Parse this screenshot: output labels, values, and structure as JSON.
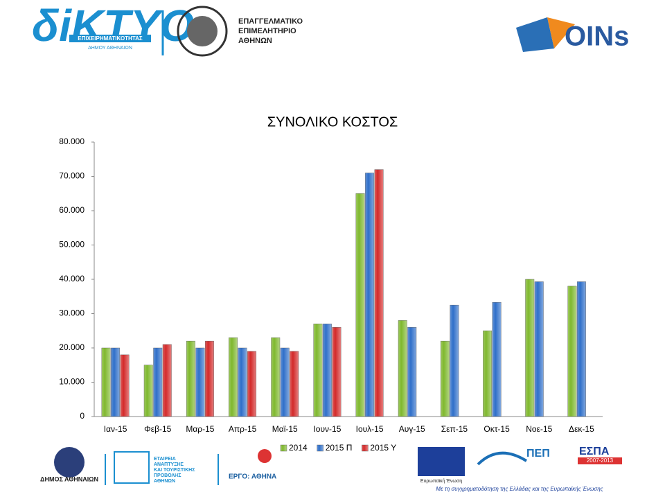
{
  "header": {
    "diktyo": "δiKTYO",
    "diktyo_sub": "ΕΠΙΧΕΙΡΗΜΑΤΙΚΟΤΗΤΑΣ",
    "diktyo_sub2": "ΔΗΜΟΥ ΑΘΗΝΑΙΩΝ",
    "chamber": [
      "ΕΠΑΓΓΕΛΜΑΤΙΚΟ",
      "ΕΠΙΜΕΛΗΤΗΡΙΟ",
      "ΑΘΗΝΩΝ"
    ],
    "coins": "OINs"
  },
  "footer": {
    "dimos": "ΔΗΜΟΣ ΑΘΗΝΑΙΩΝ",
    "etaireia": [
      "ΕΤΑΙΡΕΙΑ",
      "ΑΝΑΠΤΥΞΗΣ",
      "ΚΑΙ ΤΟΥΡΙΣΤΙΚΗΣ",
      "ΠΡΟΒΟΛΗΣ",
      "ΑΘΗΝΩΝ"
    ],
    "ergo": "ΕΡΓΟ: ΑΘΗΝΑ",
    "eu": "Ευρωπαϊκή Ένωση",
    "pep": "ΠΕΠ",
    "espa": "ΕΣΠΑ",
    "espa_years": "2007-2013",
    "cofund": "Με τη συγχρηματοδότηση της Ελλάδας και της Ευρωπαϊκής Ένωσης"
  },
  "chart_data": {
    "type": "bar",
    "title": "ΣΥΝΟΛΙΚΟ ΚΟΣΤΟΣ",
    "categories": [
      "Ιαν-15",
      "Φεβ-15",
      "Μαρ-15",
      "Απρ-15",
      "Μαϊ-15",
      "Ιουν-15",
      "Ιουλ-15",
      "Αυγ-15",
      "Σεπ-15",
      "Οκτ-15",
      "Νοε-15",
      "Δεκ-15"
    ],
    "series": [
      {
        "name": "2014",
        "color": "#7fb82e",
        "values": [
          20000,
          15000,
          22000,
          23000,
          23000,
          27000,
          65000,
          28000,
          22000,
          25000,
          40000,
          38000
        ]
      },
      {
        "name": "2015 Π",
        "color": "#2f6fc9",
        "values": [
          20000,
          20000,
          20000,
          20000,
          20000,
          27000,
          71000,
          26000,
          32500,
          33300,
          39300,
          39300
        ]
      },
      {
        "name": "2015 Υ",
        "color": "#d32a2a",
        "values": [
          18000,
          21000,
          22000,
          19000,
          19000,
          26000,
          72000,
          null,
          null,
          null,
          null,
          null
        ]
      }
    ],
    "ylim": [
      0,
      80000
    ],
    "yticks": [
      0,
      {
        "value": 10000,
        "label": "10.000"
      },
      {
        "value": 20000,
        "label": "20.000"
      },
      {
        "value": 30000,
        "label": "30.000"
      },
      {
        "value": 40000,
        "label": "40.000"
      },
      {
        "value": 50000,
        "label": "50.000"
      },
      {
        "value": 60000,
        "label": "60.000"
      },
      {
        "value": 70000,
        "label": "70.000"
      },
      {
        "value": 80000,
        "label": "80.000"
      }
    ],
    "grid": false,
    "legend": "bottom"
  }
}
